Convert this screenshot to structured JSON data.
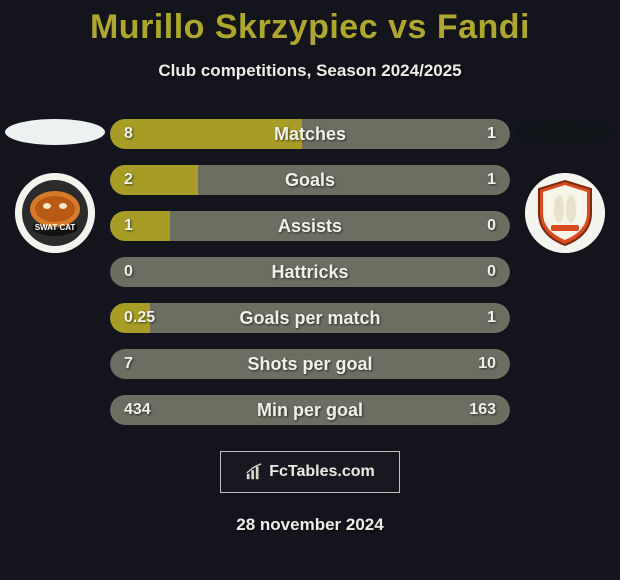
{
  "header": {
    "title": "Murillo Skrzypiec vs Fandi",
    "subtitle": "Club competitions, Season 2024/2025",
    "title_color": "#aea72e",
    "subtitle_color": "#eceee8"
  },
  "background_color": "#14141c",
  "ellipse_colors": {
    "left": "#eef1f1",
    "right": "#101318"
  },
  "teams": {
    "left": {
      "name": "swat-cat",
      "bg": "#f4f4ef"
    },
    "right": {
      "name": "bangkok-glass",
      "bg": "#f4f4ef"
    }
  },
  "bar_style": {
    "bg_color": "#6c6e62",
    "fill_color": "#a69c26",
    "height": 30,
    "radius": 15,
    "text_color": "#f0f2ea",
    "label_fontsize": 18,
    "value_fontsize": 16
  },
  "rows": [
    {
      "label": "Matches",
      "left": "8",
      "right": "1",
      "left_pct": 48,
      "right_pct": 0
    },
    {
      "label": "Goals",
      "left": "2",
      "right": "1",
      "left_pct": 22,
      "right_pct": 0
    },
    {
      "label": "Assists",
      "left": "1",
      "right": "0",
      "left_pct": 15,
      "right_pct": 0
    },
    {
      "label": "Hattricks",
      "left": "0",
      "right": "0",
      "left_pct": 0,
      "right_pct": 0
    },
    {
      "label": "Goals per match",
      "left": "0.25",
      "right": "1",
      "left_pct": 10,
      "right_pct": 0
    },
    {
      "label": "Shots per goal",
      "left": "7",
      "right": "10",
      "left_pct": 0,
      "right_pct": 0
    },
    {
      "label": "Min per goal",
      "left": "434",
      "right": "163",
      "left_pct": 0,
      "right_pct": 0
    }
  ],
  "footer": {
    "brand": "FcTables.com",
    "date": "28 november 2024"
  }
}
